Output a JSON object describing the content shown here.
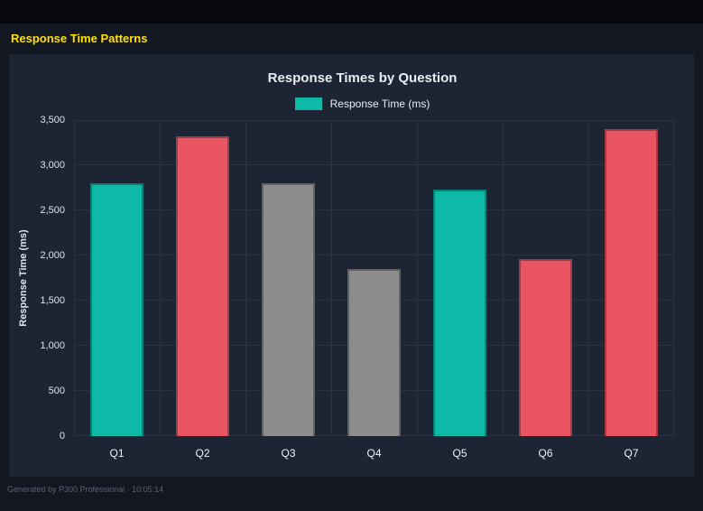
{
  "page": {
    "title": "Response Time Patterns",
    "footer": "Generated by P300 Professional · 10:05:14"
  },
  "colors": {
    "teal": "#0fb9a8",
    "red": "#e95562",
    "gray": "#8d8d8d",
    "page_bg": "#131722",
    "panel_bg": "#1d2433",
    "grid_line": "#2b3445",
    "title_yellow": "#ffe100"
  },
  "chart_data": {
    "type": "bar",
    "title": "Response Times by Question",
    "legend": [
      {
        "label": "Response Time (ms)",
        "color": "#0fb9a8"
      }
    ],
    "legend_position": "top",
    "categories": [
      "Q1",
      "Q2",
      "Q3",
      "Q4",
      "Q5",
      "Q6",
      "Q7"
    ],
    "series": [
      {
        "name": "Response Time (ms)",
        "values": [
          2800,
          3320,
          2800,
          1850,
          2730,
          1960,
          3400
        ]
      }
    ],
    "bar_colors": [
      "#0fb9a8",
      "#e95562",
      "#8d8d8d",
      "#8d8d8d",
      "#0fb9a8",
      "#e95562",
      "#e95562"
    ],
    "xlabel": "",
    "ylabel": "Response Time (ms)",
    "ylim": [
      0,
      3500
    ],
    "yticks": [
      0,
      500,
      1000,
      1500,
      2000,
      2500,
      3000,
      3500
    ],
    "ytick_labels": [
      "0",
      "500",
      "1,000",
      "1,500",
      "2,000",
      "2,500",
      "3,000",
      "3,500"
    ],
    "grid": true
  }
}
